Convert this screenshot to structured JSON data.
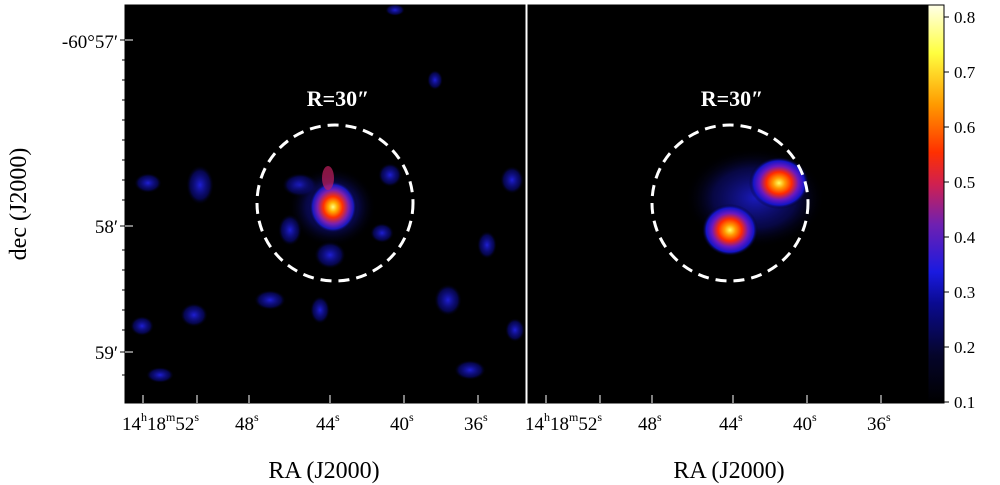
{
  "figure": {
    "left_panel": {
      "circle_label": "R=30″",
      "x_tick_labels": [
        {
          "h": "14",
          "m": "18",
          "s": "52"
        },
        {
          "s": "48"
        },
        {
          "s": "44"
        },
        {
          "s": "40"
        },
        {
          "s": "36"
        }
      ],
      "x_axis_label": "RA (J2000)",
      "y_tick_labels": [
        "-60°57′",
        "58′",
        "59′"
      ],
      "y_axis_label": "dec (J2000)"
    },
    "right_panel": {
      "circle_label": "R=30″",
      "x_tick_labels": [
        {
          "h": "14",
          "m": "18",
          "s": "52"
        },
        {
          "s": "48"
        },
        {
          "s": "44"
        },
        {
          "s": "40"
        },
        {
          "s": "36"
        }
      ],
      "x_axis_label": "RA (J2000)"
    },
    "colorbar": {
      "tick_labels": [
        "0.8",
        "0.7",
        "0.6",
        "0.5",
        "0.4",
        "0.3",
        "0.2",
        "0.1"
      ],
      "colormap": [
        "#000000",
        "#05052a",
        "#0a0a80",
        "#1a1ae0",
        "#6a20c0",
        "#c02060",
        "#ff3000",
        "#ff9000",
        "#ffff40",
        "#ffffe0"
      ]
    }
  }
}
